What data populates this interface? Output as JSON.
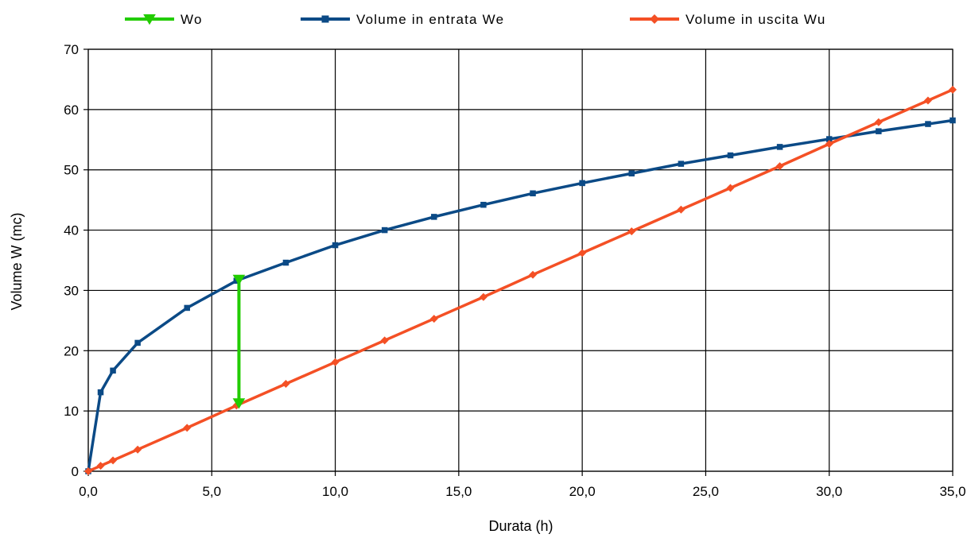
{
  "chart_data": {
    "type": "line",
    "title": "",
    "xlabel": "Durata (h)",
    "ylabel": "Volume W (mc)",
    "xlim": [
      0,
      35
    ],
    "ylim": [
      0,
      70
    ],
    "grid": true,
    "legend_position": "top",
    "x_ticks": [
      "0,0",
      "5,0",
      "10,0",
      "15,0",
      "20,0",
      "25,0",
      "30,0",
      "35,0"
    ],
    "y_ticks": [
      "0",
      "10",
      "20",
      "30",
      "40",
      "50",
      "60",
      "70"
    ],
    "series": [
      {
        "name": "Wo",
        "color": "#22cc00",
        "marker": "triangle-down",
        "x": [
          6.1,
          6.1
        ],
        "y": [
          31.8,
          11.3
        ]
      },
      {
        "name": "Volume in entrata We",
        "color": "#0b4a86",
        "marker": "square",
        "x": [
          0,
          0.5,
          1,
          2,
          4,
          6,
          8,
          10,
          12,
          14,
          16,
          18,
          20,
          22,
          24,
          26,
          28,
          30,
          32,
          34,
          35
        ],
        "y": [
          0,
          13.1,
          16.7,
          21.3,
          27.1,
          31.6,
          34.6,
          37.5,
          40.0,
          42.2,
          44.2,
          46.1,
          47.8,
          49.4,
          51.0,
          52.4,
          53.8,
          55.1,
          56.4,
          57.6,
          58.2
        ]
      },
      {
        "name": "Volume in uscita Wu",
        "color": "#f45025",
        "marker": "diamond",
        "x": [
          0,
          0.5,
          1,
          2,
          4,
          6,
          8,
          10,
          12,
          14,
          16,
          18,
          20,
          22,
          24,
          26,
          28,
          30,
          32,
          34,
          35
        ],
        "y": [
          0,
          0.9,
          1.8,
          3.6,
          7.2,
          10.9,
          14.5,
          18.1,
          21.7,
          25.3,
          28.9,
          32.6,
          36.2,
          39.8,
          43.4,
          47.0,
          50.6,
          54.3,
          57.9,
          61.5,
          63.3
        ]
      }
    ]
  }
}
